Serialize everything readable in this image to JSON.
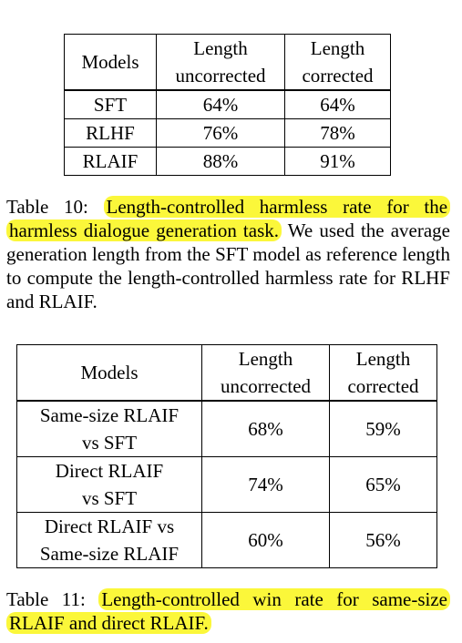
{
  "table10": {
    "headers": [
      [
        "Models"
      ],
      [
        "Length",
        "uncorrected"
      ],
      [
        "Length",
        "corrected"
      ]
    ],
    "rows": [
      [
        "SFT",
        "64%",
        "64%"
      ],
      [
        "RLHF",
        "76%",
        "78%"
      ],
      [
        "RLAIF",
        "88%",
        "91%"
      ]
    ],
    "caption": {
      "label": "Table 10:",
      "highlight": "Length-controlled harmless rate for the harmless dialogue generation task.",
      "rest": "We used the average generation length from the SFT model as reference length to compute the length-controlled harmless rate for RLHF and RLAIF."
    }
  },
  "table11": {
    "headers": [
      [
        "Models"
      ],
      [
        "Length",
        "uncorrected"
      ],
      [
        "Length",
        "corrected"
      ]
    ],
    "rows": [
      [
        [
          "Same-size RLAIF",
          "vs SFT"
        ],
        "68%",
        "59%"
      ],
      [
        [
          "Direct RLAIF",
          "vs SFT"
        ],
        "74%",
        "65%"
      ],
      [
        [
          "Direct RLAIF vs",
          "Same-size RLAIF"
        ],
        "60%",
        "56%"
      ]
    ],
    "caption": {
      "label": "Table 11:",
      "highlight": "Length-controlled win rate for same-size RLAIF and direct RLAIF."
    }
  },
  "colors": {
    "highlight": "#fbf73a",
    "text": "#000000"
  }
}
